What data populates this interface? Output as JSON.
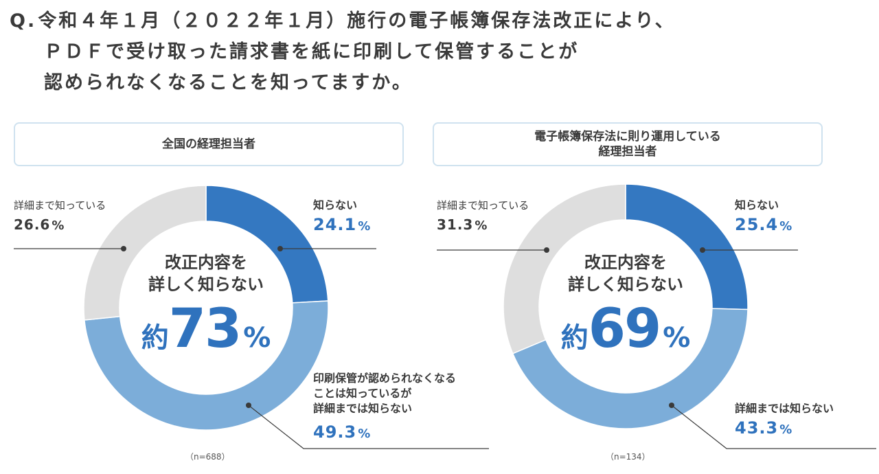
{
  "question": {
    "prefix": "Q.",
    "lines": [
      "令和４年１月（２０２２年１月）施行の電子帳簿保存法改正により、",
      "ＰＤＦで受け取った請求書を紙に印刷して保管することが",
      "認められなくなることを知ってますか。"
    ]
  },
  "center_lines": [
    "改正内容を",
    "詳しく知らない"
  ],
  "chart_data": [
    {
      "type": "pie",
      "title": "全国の経理担当者",
      "n_note": "（n=688）",
      "summary": {
        "prefix": "約",
        "value": "73",
        "unit": "%"
      },
      "slices": [
        {
          "label": "知らない",
          "value": 24.1,
          "display": "24.1",
          "color": "#3478c1"
        },
        {
          "label": "印刷保管が認められなくなることは知っているが詳細までは知らない",
          "label_lines": [
            "印刷保管が認められなくなる",
            "ことは知っているが",
            "詳細までは知らない"
          ],
          "value": 49.3,
          "display": "49.3",
          "color": "#7cadd9"
        },
        {
          "label": "詳細まで知っている",
          "value": 26.6,
          "display": "26.6",
          "color": "#dedede"
        }
      ]
    },
    {
      "type": "pie",
      "title": "電子帳簿保存法に則り運用している経理担当者",
      "title_lines": [
        "電子帳簿保存法に則り運用している",
        "経理担当者"
      ],
      "n_note": "（n=134）",
      "summary": {
        "prefix": "約",
        "value": "69",
        "unit": "%"
      },
      "slices": [
        {
          "label": "知らない",
          "value": 25.4,
          "display": "25.4",
          "color": "#3478c1"
        },
        {
          "label": "詳細までは知らない",
          "value": 43.3,
          "display": "43.3",
          "color": "#7cadd9"
        },
        {
          "label": "詳細まで知っている",
          "value": 31.3,
          "display": "31.3",
          "color": "#dedede"
        }
      ]
    }
  ]
}
